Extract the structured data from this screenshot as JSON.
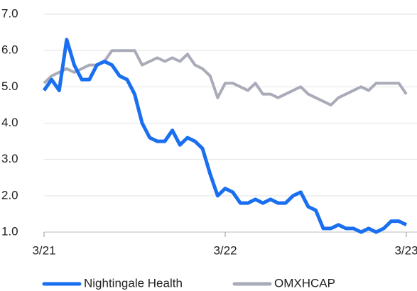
{
  "chart_data": {
    "type": "line",
    "categories": [
      "3/21",
      null,
      null,
      null,
      null,
      null,
      null,
      null,
      null,
      null,
      null,
      null,
      null,
      null,
      null,
      null,
      null,
      null,
      null,
      null,
      null,
      null,
      null,
      null,
      "3/22",
      null,
      null,
      null,
      null,
      null,
      null,
      null,
      null,
      null,
      null,
      null,
      null,
      null,
      null,
      null,
      null,
      null,
      null,
      null,
      null,
      null,
      null,
      null,
      "3/23"
    ],
    "series": [
      {
        "name": "Nightingale Health",
        "color": "#1a6ff0",
        "values": [
          4.9,
          5.2,
          4.9,
          6.3,
          5.6,
          5.2,
          5.2,
          5.6,
          5.7,
          5.6,
          5.3,
          5.2,
          4.8,
          4.0,
          3.6,
          3.5,
          3.5,
          3.8,
          3.4,
          3.6,
          3.5,
          3.3,
          2.6,
          2.0,
          2.2,
          2.1,
          1.8,
          1.8,
          1.9,
          1.8,
          1.9,
          1.8,
          1.8,
          2.0,
          2.1,
          1.7,
          1.6,
          1.1,
          1.1,
          1.2,
          1.1,
          1.1,
          1.0,
          1.1,
          1.0,
          1.1,
          1.3,
          1.3,
          1.2
        ]
      },
      {
        "name": "OMXHCAP",
        "color": "#a9abb8",
        "values": [
          5.1,
          5.3,
          5.4,
          5.5,
          5.4,
          5.5,
          5.6,
          5.6,
          5.7,
          6.0,
          6.0,
          6.0,
          6.0,
          5.6,
          5.7,
          5.8,
          5.7,
          5.8,
          5.7,
          5.9,
          5.6,
          5.5,
          5.3,
          4.7,
          5.1,
          5.1,
          5.0,
          4.9,
          5.1,
          4.8,
          4.8,
          4.7,
          4.8,
          4.9,
          5.0,
          4.8,
          4.7,
          4.6,
          4.5,
          4.7,
          4.8,
          4.9,
          5.0,
          4.9,
          5.1,
          5.1,
          5.1,
          5.1,
          4.8
        ]
      }
    ],
    "ylim": [
      1,
      7
    ],
    "yticks": [
      {
        "value": 1,
        "label": "1.0"
      },
      {
        "value": 2,
        "label": "2.0"
      },
      {
        "value": 3,
        "label": "3.0"
      },
      {
        "value": 4,
        "label": "4.0"
      },
      {
        "value": 5,
        "label": "5.0"
      },
      {
        "value": 6,
        "label": "6.0"
      },
      {
        "value": 7,
        "label": "7.0"
      }
    ],
    "grid": true
  }
}
